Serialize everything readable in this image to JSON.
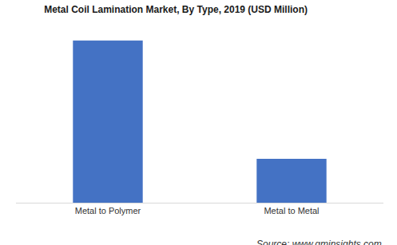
{
  "chart_data": {
    "type": "bar",
    "title": "Metal Coil Lamination Market, By Type, 2019 (USD Million)",
    "categories": [
      "Metal to Polymer",
      "Metal to Metal"
    ],
    "values": [
      200,
      54
    ],
    "color": "#4472c4",
    "grid": false,
    "tick_labels": "x",
    "source": "Source: www.gminsights.com"
  }
}
